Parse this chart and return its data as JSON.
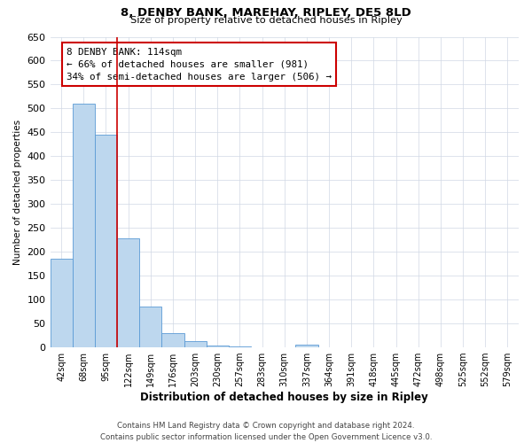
{
  "title1": "8, DENBY BANK, MAREHAY, RIPLEY, DE5 8LD",
  "title2": "Size of property relative to detached houses in Ripley",
  "xlabel": "Distribution of detached houses by size in Ripley",
  "ylabel": "Number of detached properties",
  "categories": [
    "42sqm",
    "68sqm",
    "95sqm",
    "122sqm",
    "149sqm",
    "176sqm",
    "203sqm",
    "230sqm",
    "257sqm",
    "283sqm",
    "310sqm",
    "337sqm",
    "364sqm",
    "391sqm",
    "418sqm",
    "445sqm",
    "472sqm",
    "498sqm",
    "525sqm",
    "552sqm",
    "579sqm"
  ],
  "values": [
    185,
    510,
    445,
    228,
    85,
    30,
    14,
    4,
    2,
    1,
    1,
    5,
    1,
    0,
    0,
    1,
    0,
    0,
    0,
    1,
    0
  ],
  "bar_color": "#bdd7ee",
  "bar_edge_color": "#5b9bd5",
  "vline_color": "#cc0000",
  "annotation_text": "8 DENBY BANK: 114sqm\n← 66% of detached houses are smaller (981)\n34% of semi-detached houses are larger (506) →",
  "ylim": [
    0,
    650
  ],
  "yticks": [
    0,
    50,
    100,
    150,
    200,
    250,
    300,
    350,
    400,
    450,
    500,
    550,
    600,
    650
  ],
  "footer_line1": "Contains HM Land Registry data © Crown copyright and database right 2024.",
  "footer_line2": "Contains public sector information licensed under the Open Government Licence v3.0.",
  "background_color": "#ffffff",
  "grid_color": "#d0d8e4"
}
